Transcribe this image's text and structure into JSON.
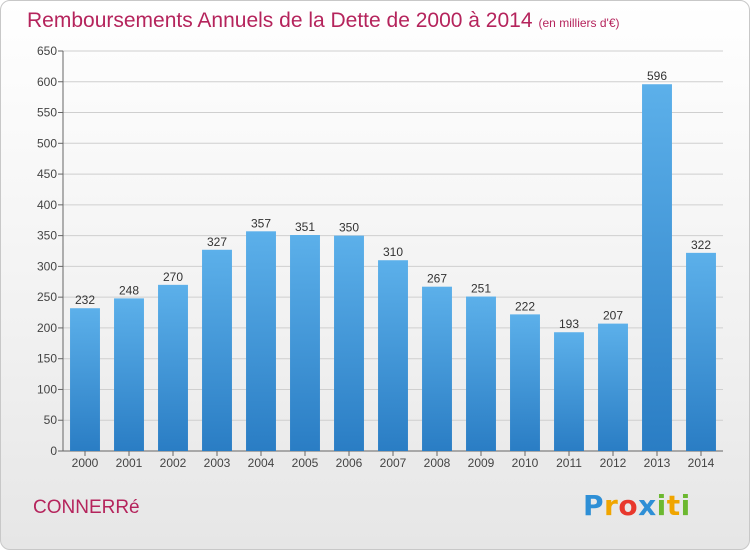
{
  "title": "Remboursements Annuels de la Dette de 2000 à 2014",
  "unit": "(en milliers d'€)",
  "commune": "CONNERRé",
  "logo": {
    "letters": [
      {
        "ch": "P",
        "color": "#2e8fd6"
      },
      {
        "ch": "r",
        "color": "#f0a500"
      },
      {
        "ch": "o",
        "color": "#e8382d"
      },
      {
        "ch": "x",
        "color": "#2e8fd6"
      },
      {
        "ch": "i",
        "color": "#6cb830"
      },
      {
        "ch": "t",
        "color": "#f0a500"
      },
      {
        "ch": "i",
        "color": "#6cb830"
      }
    ]
  },
  "colors": {
    "bar_top": "#5cb0ea",
    "bar_bottom": "#2a7dc4",
    "title": "#b5245c",
    "axis_text": "#444444",
    "grid": "#cfcfcf"
  },
  "chart_data": {
    "type": "bar",
    "title": "Remboursements Annuels de la Dette de 2000 à 2014",
    "xlabel": "",
    "ylabel": "",
    "categories": [
      "2000",
      "2001",
      "2002",
      "2003",
      "2004",
      "2005",
      "2006",
      "2007",
      "2008",
      "2009",
      "2010",
      "2011",
      "2012",
      "2013",
      "2014"
    ],
    "values": [
      232,
      248,
      270,
      327,
      357,
      351,
      350,
      310,
      267,
      251,
      222,
      193,
      207,
      596,
      322
    ],
    "ylim": [
      0,
      650
    ],
    "yticks": [
      0,
      50,
      100,
      150,
      200,
      250,
      300,
      350,
      400,
      450,
      500,
      550,
      600,
      650
    ],
    "grid": true,
    "data_labels": true
  }
}
